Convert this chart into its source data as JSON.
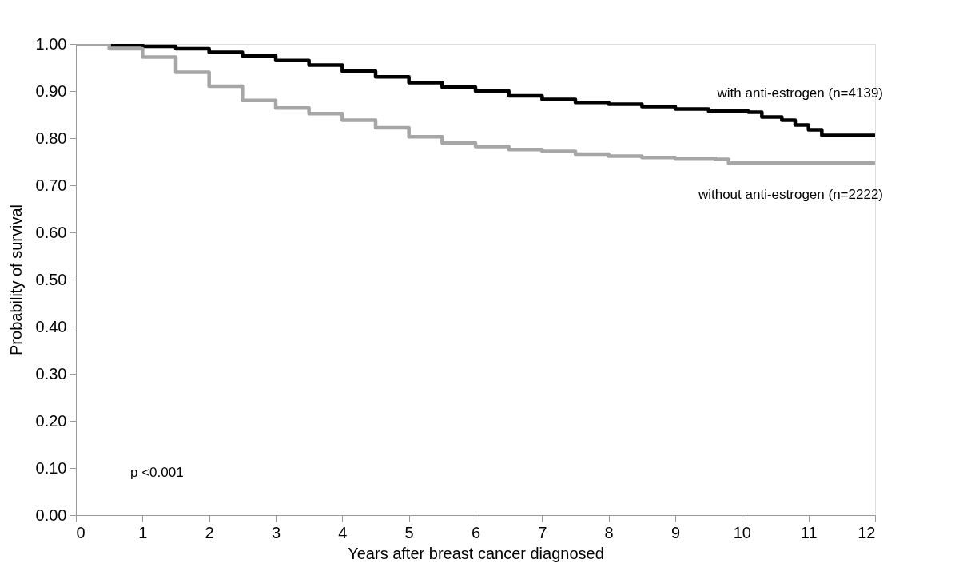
{
  "chart_data": {
    "type": "step",
    "xlabel": "Years after breast cancer diagnosed",
    "ylabel": "Probability of survival",
    "xlim": [
      0,
      12
    ],
    "xticks": [
      0,
      1,
      2,
      3,
      4,
      5,
      6,
      7,
      8,
      9,
      10,
      11,
      12
    ],
    "ylim": [
      0,
      1
    ],
    "yticks": [
      {
        "value": 0,
        "label": "0.00"
      },
      {
        "value": 0.1,
        "label": "0.10"
      },
      {
        "value": 0.2,
        "label": "0.20"
      },
      {
        "value": 0.3,
        "label": "0.30"
      },
      {
        "value": 0.4,
        "label": "0.40"
      },
      {
        "value": 0.5,
        "label": "0.50"
      },
      {
        "value": 0.6,
        "label": "0.60"
      },
      {
        "value": 0.7,
        "label": "0.70"
      },
      {
        "value": 0.8,
        "label": "0.80"
      },
      {
        "value": 0.9,
        "label": "0.90"
      },
      {
        "value": 1,
        "label": "1.00"
      }
    ],
    "grid": false,
    "legend": false,
    "line_style": "solid",
    "marker": "none",
    "series": [
      {
        "name": "with anti-estrogen (n=4139)",
        "color": "#000000",
        "x": [
          0,
          0.5,
          1,
          1.5,
          2,
          2.5,
          3,
          3.5,
          4,
          4.5,
          5,
          5.5,
          6,
          6.5,
          7,
          7.5,
          8,
          8.5,
          9,
          9.5,
          10.1,
          10.3,
          10.6,
          10.8,
          11,
          11.2,
          12
        ],
        "values": [
          1.0,
          0.998,
          0.995,
          0.99,
          0.982,
          0.975,
          0.965,
          0.955,
          0.942,
          0.93,
          0.918,
          0.908,
          0.9,
          0.89,
          0.882,
          0.876,
          0.872,
          0.867,
          0.862,
          0.857,
          0.855,
          0.845,
          0.838,
          0.828,
          0.818,
          0.806,
          0.806
        ]
      },
      {
        "name": "without anti-estrogen (n=2222)",
        "color": "#a6a6a6",
        "x": [
          0,
          0.5,
          1,
          1.5,
          2,
          2.5,
          3,
          3.5,
          4,
          4.5,
          5,
          5.5,
          6,
          6.5,
          7,
          7.5,
          8,
          8.5,
          9,
          9.6,
          9.8,
          12
        ],
        "values": [
          1.0,
          0.99,
          0.972,
          0.94,
          0.91,
          0.88,
          0.864,
          0.852,
          0.838,
          0.822,
          0.803,
          0.79,
          0.782,
          0.776,
          0.772,
          0.766,
          0.762,
          0.759,
          0.757,
          0.755,
          0.747,
          0.747
        ]
      }
    ],
    "annotations": [
      "p <0.001"
    ]
  }
}
